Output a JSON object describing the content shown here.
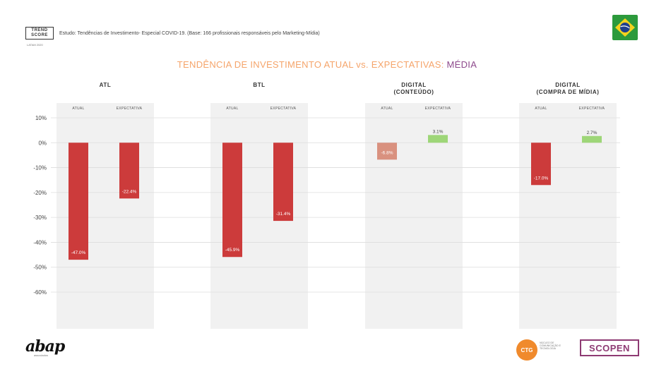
{
  "header": {
    "logo_line1": "TREND",
    "logo_line2": "SCORE",
    "logo_sub": "LATAM 2020",
    "study_text": "Estudo: Tendências de Investimento- Especial COVID-19. (Base: 166 profissionais responsáveis pelo Marketing-Mídia)"
  },
  "title": {
    "main": "TENDÊNCIA DE INVESTIMENTO ATUAL vs. EXPECTATIVAS: ",
    "accent": "MÉDIA"
  },
  "colors": {
    "title": "#f5a46a",
    "accent": "#8e4a8c",
    "bar_negative": "#cc3b3b",
    "bar_negative_light": "#d9917f",
    "bar_positive": "#9ed678",
    "panel_bg": "#f1f1f1"
  },
  "chart_data": {
    "type": "bar",
    "title": "TENDÊNCIA DE INVESTIMENTO ATUAL vs. EXPECTATIVAS: MÉDIA",
    "ylim": [
      -60,
      10
    ],
    "yticks": [
      10,
      0,
      -10,
      -20,
      -30,
      -40,
      -50,
      -60
    ],
    "ytick_labels": [
      "10%",
      "0%",
      "-10%",
      "-20%",
      "-30%",
      "-40%",
      "-50%",
      "-60%"
    ],
    "grid": true,
    "groups": [
      {
        "title": [
          "ATL"
        ],
        "categories": [
          "ATUAL",
          "EXPECTATIVA"
        ],
        "values": [
          -47.0,
          -22.4
        ],
        "labels": [
          "-47.0%",
          "-22.4%"
        ],
        "colors": [
          "#cc3b3b",
          "#cc3b3b"
        ]
      },
      {
        "title": [
          "BTL"
        ],
        "categories": [
          "ATUAL",
          "EXPECTATIVA"
        ],
        "values": [
          -45.9,
          -31.4
        ],
        "labels": [
          "-45.9%",
          "-31.4%"
        ],
        "colors": [
          "#cc3b3b",
          "#cc3b3b"
        ]
      },
      {
        "title": [
          "DIGITAL",
          "(CONTEÚDO)"
        ],
        "categories": [
          "ATUAL",
          "EXPECTATIVA"
        ],
        "values": [
          -6.8,
          3.1
        ],
        "labels": [
          "-6.8%",
          "3.1%"
        ],
        "colors": [
          "#d9917f",
          "#9ed678"
        ]
      },
      {
        "title": [
          "DIGITAL",
          "(COMPRA DE MÍDIA)"
        ],
        "categories": [
          "ATUAL",
          "EXPECTATIVA"
        ],
        "values": [
          -17.0,
          2.7
        ],
        "labels": [
          "-17.0%",
          "2.7%"
        ],
        "colors": [
          "#cc3b3b",
          "#9ed678"
        ]
      }
    ]
  },
  "footer": {
    "abap_logo": "abap",
    "abap_sub": "associados",
    "cta_logo": "CTG",
    "cta_text": "NÚCLEO DE COMUNICAÇÃO E TECNOLOGIA",
    "scopen_logo": "SCOPEN"
  }
}
